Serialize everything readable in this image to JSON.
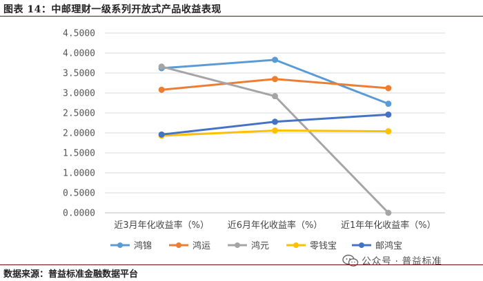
{
  "header": {
    "title": "图表 14：中邮理财一级系列开放式产品收益表现"
  },
  "footer": {
    "source": "数据来源：普益标准金融数据平台",
    "watermark": "公众号 · 普益标准"
  },
  "colors": {
    "title_rule": "#7a0b0b"
  },
  "chart_data": {
    "type": "line",
    "categories": [
      "近3月年化收益率（%）",
      "近6月年化收益率（%）",
      "近1年年化收益率（%）"
    ],
    "ylim": [
      0,
      4.5
    ],
    "yticks": [
      "4.5000",
      "4.0000",
      "3.5000",
      "3.0000",
      "2.5000",
      "2.0000",
      "1.5000",
      "1.0000",
      "0.5000",
      "0.0000"
    ],
    "grid": true,
    "legend_position": "bottom",
    "series": [
      {
        "name": "鸿锦",
        "values": [
          3.62,
          3.83,
          2.73
        ],
        "color": "#5b9bd5"
      },
      {
        "name": "鸿运",
        "values": [
          3.08,
          3.35,
          3.12
        ],
        "color": "#ed7d31"
      },
      {
        "name": "鸿元",
        "values": [
          3.66,
          2.92,
          0.0
        ],
        "color": "#a5a5a5"
      },
      {
        "name": "零钱宝",
        "values": [
          1.93,
          2.06,
          2.04
        ],
        "color": "#ffc000"
      },
      {
        "name": "邮鸿宝",
        "values": [
          1.96,
          2.28,
          2.46
        ],
        "color": "#4472c4"
      }
    ]
  }
}
